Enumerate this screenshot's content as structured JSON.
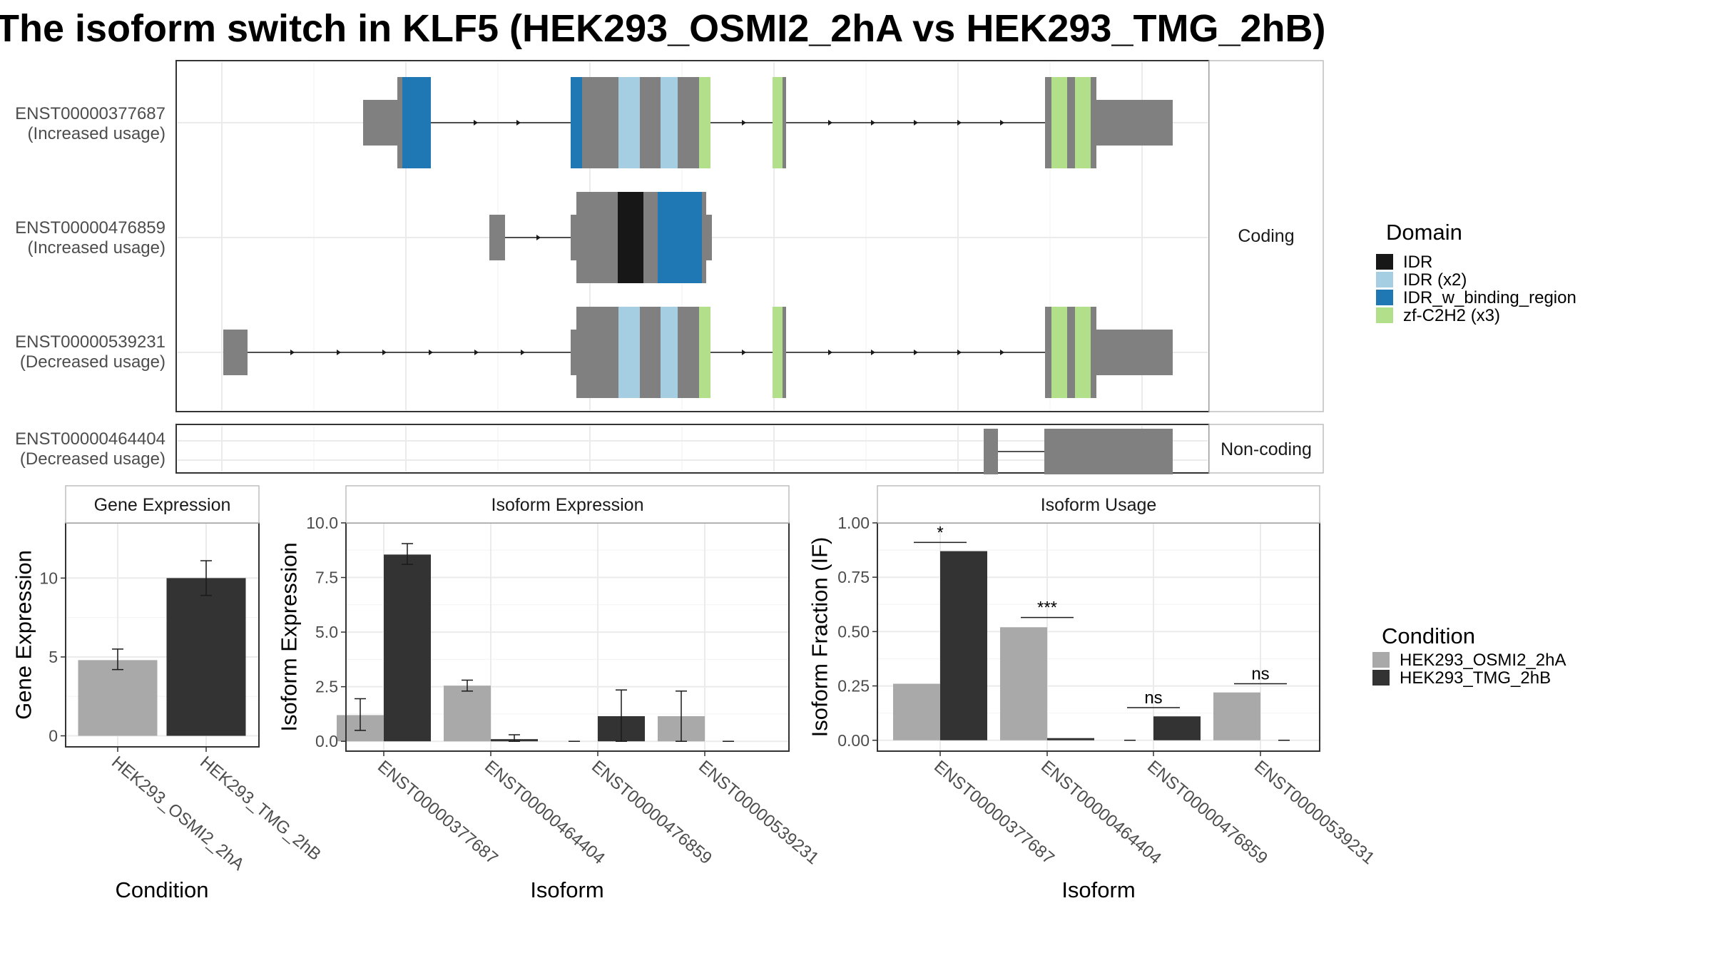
{
  "title": "The isoform switch in KLF5 (HEK293_OSMI2_2hA vs HEK293_TMG_2hB)",
  "colors": {
    "exon": "#808080",
    "IDR": "#171717",
    "IDR (x2)": "#a6cee3",
    "IDR_w_binding_region": "#1f78b4",
    "zf-C2H2 (x3)": "#b2df8a",
    "cond_a": "#a9a9a9",
    "cond_b": "#333333"
  },
  "structure": {
    "facets": [
      "Coding",
      "Non-coding"
    ],
    "transcripts": [
      {
        "id": "ENST00000377687",
        "label_line1": "ENST00000377687",
        "label_line2": "(Increased usage)",
        "facet": "Coding"
      },
      {
        "id": "ENST00000476859",
        "label_line1": "ENST00000476859",
        "label_line2": "(Increased usage)",
        "facet": "Coding"
      },
      {
        "id": "ENST00000539231",
        "label_line1": "ENST00000539231",
        "label_line2": "(Decreased usage)",
        "facet": "Coding"
      },
      {
        "id": "ENST00000464404",
        "label_line1": "ENST00000464404",
        "label_line2": "(Decreased usage)",
        "facet": "Non-coding"
      }
    ]
  },
  "domain_legend": {
    "title": "Domain",
    "items": [
      {
        "label": "IDR",
        "color": "#171717"
      },
      {
        "label": "IDR (x2)",
        "color": "#a6cee3"
      },
      {
        "label": "IDR_w_binding_region",
        "color": "#1f78b4"
      },
      {
        "label": "zf-C2H2 (x3)",
        "color": "#b2df8a"
      }
    ]
  },
  "condition_legend": {
    "title": "Condition",
    "items": [
      {
        "label": "HEK293_OSMI2_2hA",
        "color": "#a9a9a9"
      },
      {
        "label": "HEK293_TMG_2hB",
        "color": "#333333"
      }
    ]
  },
  "chart_data": [
    {
      "type": "bar",
      "title": "Gene Expression",
      "xlabel": "Condition",
      "ylabel": "Gene Expression",
      "ylim": [
        -0.7,
        13.5
      ],
      "yticks": [
        0,
        5,
        10
      ],
      "ytick_labels": [
        "0",
        "5",
        "10"
      ],
      "categories": [
        "HEK293_OSMI2_2hA",
        "HEK293_TMG_2hB"
      ],
      "values": [
        4.8,
        10.0
      ],
      "errors": [
        [
          4.2,
          5.5
        ],
        [
          8.9,
          11.1
        ]
      ]
    },
    {
      "type": "bar",
      "title": "Isoform Expression",
      "xlabel": "Isoform",
      "ylabel": "Isoform Expression",
      "ylim": [
        -0.45,
        10.0
      ],
      "yticks": [
        0,
        2.5,
        5,
        7.5,
        10
      ],
      "ytick_labels": [
        "0.0",
        "2.5",
        "5.0",
        "7.5",
        "10.0"
      ],
      "categories": [
        "ENST00000377687",
        "ENST00000464404",
        "ENST00000476859",
        "ENST00000539231"
      ],
      "series": [
        {
          "name": "HEK293_OSMI2_2hA",
          "values": [
            1.2,
            2.55,
            0.0,
            1.15
          ],
          "errors": [
            [
              0.5,
              1.95
            ],
            [
              2.3,
              2.8
            ],
            [
              0.0,
              0.0
            ],
            [
              0.0,
              2.3
            ]
          ]
        },
        {
          "name": "HEK293_TMG_2hB",
          "values": [
            8.55,
            0.1,
            1.15,
            0.0
          ],
          "errors": [
            [
              8.1,
              9.05
            ],
            [
              0.0,
              0.3
            ],
            [
              0.0,
              2.35
            ],
            [
              0.0,
              0.0
            ]
          ]
        }
      ]
    },
    {
      "type": "bar",
      "title": "Isoform Usage",
      "xlabel": "Isoform",
      "ylabel": "Isoform Fraction (IF)",
      "ylim": [
        -0.05,
        1.0
      ],
      "yticks": [
        0,
        0.25,
        0.5,
        0.75,
        1.0
      ],
      "ytick_labels": [
        "0.00",
        "0.25",
        "0.50",
        "0.75",
        "1.00"
      ],
      "categories": [
        "ENST00000377687",
        "ENST00000464404",
        "ENST00000476859",
        "ENST00000539231"
      ],
      "series": [
        {
          "name": "HEK293_OSMI2_2hA",
          "values": [
            0.26,
            0.52,
            0.0,
            0.22
          ]
        },
        {
          "name": "HEK293_TMG_2hB",
          "values": [
            0.87,
            0.01,
            0.11,
            0.0
          ]
        }
      ],
      "significance": [
        {
          "label": "*",
          "y": 0.91
        },
        {
          "label": "***",
          "y": 0.565
        },
        {
          "label": "ns",
          "y": 0.15
        },
        {
          "label": "ns",
          "y": 0.26
        }
      ]
    }
  ]
}
